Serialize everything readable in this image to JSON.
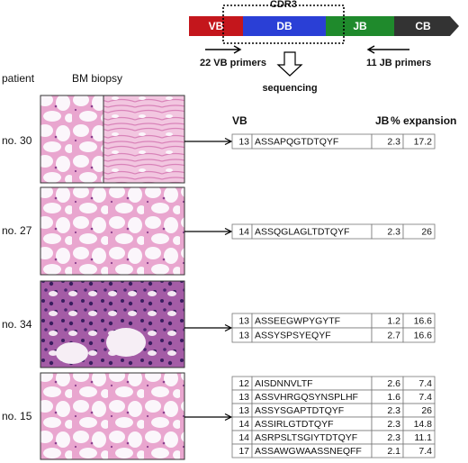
{
  "diagram": {
    "segments": [
      "VB",
      "DB",
      "JB",
      "CB"
    ],
    "region": "CDR3",
    "left_primers": "22 VB primers",
    "right_primers": "11 JB primers",
    "step": "sequencing"
  },
  "headers": {
    "patient": "patient",
    "biopsy": "BM biopsy",
    "vb": "VB",
    "jb": "JB",
    "expansion": "% expansion"
  },
  "patients": [
    {
      "label": "no. 30",
      "rows": [
        {
          "vb": 13,
          "sequence": "ASSAPQGTDTQYF",
          "jb": 2.3,
          "expansion": 17.2
        }
      ]
    },
    {
      "label": "no. 27",
      "rows": [
        {
          "vb": 14,
          "sequence": "ASSQGLAGLTDTQYF",
          "jb": 2.3,
          "expansion": 26
        }
      ]
    },
    {
      "label": "no. 34",
      "rows": [
        {
          "vb": 13,
          "sequence": "ASSEEGWPYGYTF",
          "jb": 1.2,
          "expansion": 16.6
        },
        {
          "vb": 13,
          "sequence": "ASSYSPSYEQYF",
          "jb": 2.7,
          "expansion": 16.6
        }
      ]
    },
    {
      "label": "no. 15",
      "rows": [
        {
          "vb": 12,
          "sequence": "AISDNNVLTF",
          "jb": 2.6,
          "expansion": 7.4
        },
        {
          "vb": 13,
          "sequence": "ASSVHRGQSYNSPLHF",
          "jb": 1.6,
          "expansion": 7.4
        },
        {
          "vb": 13,
          "sequence": "ASSYSGAPTDTQYF",
          "jb": 2.3,
          "expansion": 26
        },
        {
          "vb": 14,
          "sequence": "ASSIRLGTDTQYF",
          "jb": 2.3,
          "expansion": 14.8
        },
        {
          "vb": 14,
          "sequence": "ASRPSLTSGIYTDTQYF",
          "jb": 2.3,
          "expansion": 11.1
        },
        {
          "vb": 17,
          "sequence": "ASSAWGWAASSNEQFF",
          "jb": 2.1,
          "expansion": 7.4
        }
      ]
    }
  ]
}
